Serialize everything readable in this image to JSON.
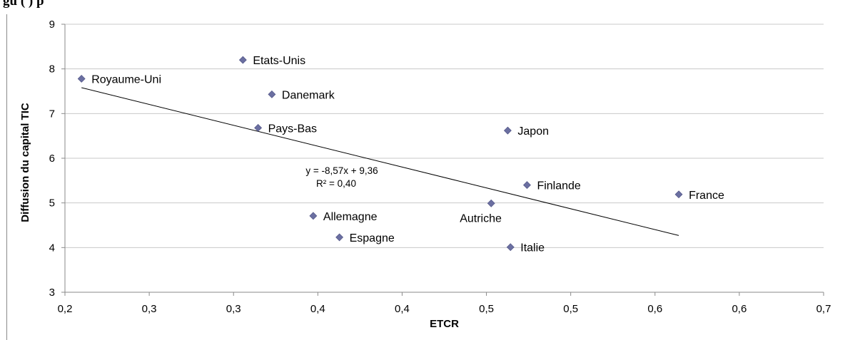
{
  "caption": {
    "text": "gu                                          (                              )                         p"
  },
  "chart_data": {
    "type": "scatter",
    "xlabel": "ETCR",
    "ylabel": "Diffusion du capital TIC",
    "xlim": [
      0.15,
      0.7
    ],
    "ylim": [
      3,
      9
    ],
    "x_tick_labels": [
      "0,2",
      "0,3",
      "0,3",
      "0,4",
      "0,4",
      "0,5",
      "0,5",
      "0,6",
      "0,6",
      "0,7"
    ],
    "y_tick_labels": [
      "3",
      "4",
      "5",
      "6",
      "7",
      "8",
      "9"
    ],
    "grid": {
      "horizontal": true,
      "vertical": false
    },
    "marker_color": "#6b6fa1",
    "points": [
      {
        "label": "Royaume-Uni",
        "x": 0.162,
        "y": 7.78
      },
      {
        "label": "Etats-Unis",
        "x": 0.279,
        "y": 8.2
      },
      {
        "label": "Danemark",
        "x": 0.3,
        "y": 7.43
      },
      {
        "label": "Pays-Bas",
        "x": 0.29,
        "y": 6.68
      },
      {
        "label": "Japon",
        "x": 0.471,
        "y": 6.62
      },
      {
        "label": "Finlande",
        "x": 0.485,
        "y": 5.4
      },
      {
        "label": "France",
        "x": 0.595,
        "y": 5.19
      },
      {
        "label": "Autriche",
        "x": 0.459,
        "y": 4.99
      },
      {
        "label": "Allemagne",
        "x": 0.33,
        "y": 4.71
      },
      {
        "label": "Espagne",
        "x": 0.349,
        "y": 4.23
      },
      {
        "label": "Italie",
        "x": 0.473,
        "y": 4.01
      }
    ],
    "trendline": {
      "equation": "y = -8,57x + 9,36",
      "r_squared": "R² = 0,40",
      "x_range": [
        0.162,
        0.595
      ]
    }
  }
}
